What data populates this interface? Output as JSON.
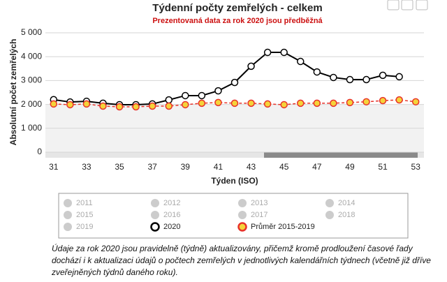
{
  "chart_data": {
    "type": "line",
    "title": "Týdenní počty zemřelých - celkem",
    "subtitle": "Prezentovaná data za rok 2020 jsou předběžná",
    "x_label": "Týden (ISO)",
    "y_label": "Absolutní počet zemřelých",
    "x": [
      31,
      32,
      33,
      34,
      35,
      36,
      37,
      38,
      39,
      40,
      41,
      42,
      43,
      44,
      45,
      46,
      47,
      48,
      49,
      50,
      51,
      52,
      53
    ],
    "xlim": [
      30.5,
      53.5
    ],
    "xticks": [
      31,
      33,
      35,
      37,
      39,
      41,
      43,
      45,
      47,
      49,
      51,
      53
    ],
    "ylim": [
      0,
      5000
    ],
    "yticks": [
      0,
      {
        "value": 1000,
        "label": "1 000"
      },
      {
        "value": 2000,
        "label": "2 000"
      },
      {
        "value": 3000,
        "label": "3 000"
      },
      {
        "value": 4000,
        "label": "4 000"
      },
      {
        "value": 5000,
        "label": "5 000"
      }
    ],
    "grid": true,
    "series": [
      {
        "name": "2020",
        "color": "#000000",
        "values": [
          2200,
          2100,
          2130,
          2050,
          1990,
          1990,
          2020,
          2190,
          2370,
          2370,
          2570,
          2920,
          3600,
          4180,
          4180,
          3800,
          3360,
          3130,
          3040,
          3040,
          3220,
          3160,
          null
        ]
      },
      {
        "name": "Průměr 2015-2019",
        "color": "#e8322a",
        "values": [
          2020,
          1990,
          2020,
          1930,
          1900,
          1900,
          1930,
          1930,
          1990,
          2050,
          2080,
          2050,
          2050,
          2020,
          1990,
          2050,
          2050,
          2050,
          2080,
          2110,
          2160,
          2190,
          2110
        ]
      }
    ],
    "hidden_series": [
      "2011",
      "2012",
      "2013",
      "2014",
      "2015",
      "2016",
      "2017",
      "2018",
      "2019"
    ],
    "note": "Údaje za rok 2020 jsou pravidelně (týdně) aktualizovány, přičemž kromě prodloužení časové řady dochází i k aktualizaci údajů o počtech zemřelých v jednotlivých kalendářních týdnech (včetně již dříve zveřejněných týdnů daného roku)."
  }
}
